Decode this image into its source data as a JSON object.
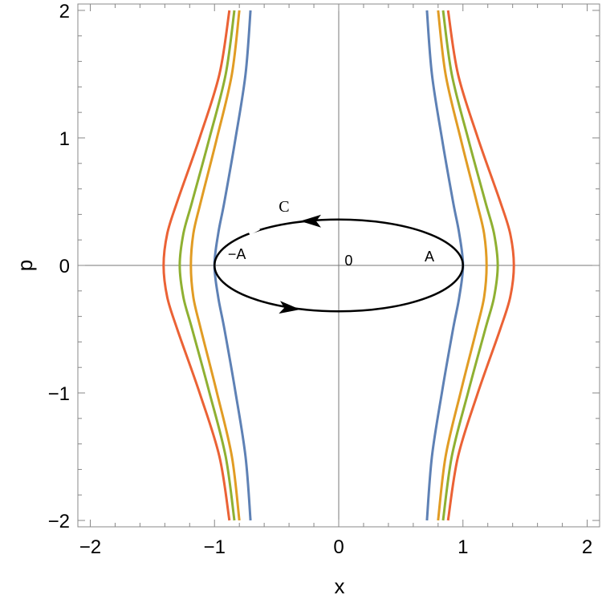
{
  "chart_data": {
    "type": "line",
    "title": "",
    "xlabel": "x",
    "ylabel": "p",
    "xlim": [
      -2.1,
      2.1
    ],
    "ylim": [
      -2.05,
      2.05
    ],
    "x_ticks": [
      -2,
      -1,
      0,
      1,
      2
    ],
    "y_ticks": [
      -2,
      -1,
      0,
      1,
      2
    ],
    "x_tick_labels": [
      "−2",
      "−1",
      "0",
      "1",
      "2"
    ],
    "y_tick_labels": [
      "−2",
      "−1",
      "0",
      "1",
      "2"
    ],
    "grid": false,
    "frame": true,
    "series": [
      {
        "color": "#5E81B5",
        "values": [
          [
            0.71,
            -2
          ],
          [
            0.75,
            -1.5
          ],
          [
            0.83,
            -1
          ],
          [
            0.92,
            -0.5
          ],
          [
            0.97,
            -0.25
          ],
          [
            1.0,
            0
          ],
          [
            0.97,
            0.25
          ],
          [
            0.92,
            0.5
          ],
          [
            0.83,
            1
          ],
          [
            0.75,
            1.5
          ],
          [
            0.71,
            2
          ]
        ],
        "mirrored": true
      },
      {
        "color": "#E19C24",
        "values": [
          [
            0.8,
            -2
          ],
          [
            0.86,
            -1.5
          ],
          [
            0.98,
            -1
          ],
          [
            1.11,
            -0.5
          ],
          [
            1.17,
            -0.25
          ],
          [
            1.19,
            0
          ],
          [
            1.17,
            0.25
          ],
          [
            1.11,
            0.5
          ],
          [
            0.98,
            1
          ],
          [
            0.86,
            1.5
          ],
          [
            0.8,
            2
          ]
        ],
        "mirrored": true
      },
      {
        "color": "#8FB032",
        "values": [
          [
            0.84,
            -2
          ],
          [
            0.91,
            -1.5
          ],
          [
            1.04,
            -1
          ],
          [
            1.18,
            -0.5
          ],
          [
            1.25,
            -0.25
          ],
          [
            1.28,
            0
          ],
          [
            1.25,
            0.25
          ],
          [
            1.18,
            0.5
          ],
          [
            1.04,
            1
          ],
          [
            0.91,
            1.5
          ],
          [
            0.84,
            2
          ]
        ],
        "mirrored": true
      },
      {
        "color": "#EB6235",
        "values": [
          [
            0.88,
            -2
          ],
          [
            0.96,
            -1.5
          ],
          [
            1.12,
            -1
          ],
          [
            1.3,
            -0.5
          ],
          [
            1.38,
            -0.25
          ],
          [
            1.41,
            0
          ],
          [
            1.38,
            0.25
          ],
          [
            1.3,
            0.5
          ],
          [
            1.12,
            1
          ],
          [
            0.96,
            1.5
          ],
          [
            0.88,
            2
          ]
        ],
        "mirrored": true
      }
    ],
    "contour": {
      "label": "C",
      "center": [
        0,
        0
      ],
      "semi_axis_x": 1.0,
      "semi_axis_p": 0.36,
      "color": "#000000",
      "direction": "counterclockwise"
    },
    "annotations": [
      {
        "text": "−A",
        "x": -0.82,
        "p": 0.05
      },
      {
        "text": "0",
        "x": 0.08,
        "p": 0.0
      },
      {
        "text": "A",
        "x": 0.73,
        "p": 0.03
      },
      {
        "text": "C",
        "x": -0.44,
        "p": 0.42
      }
    ]
  }
}
